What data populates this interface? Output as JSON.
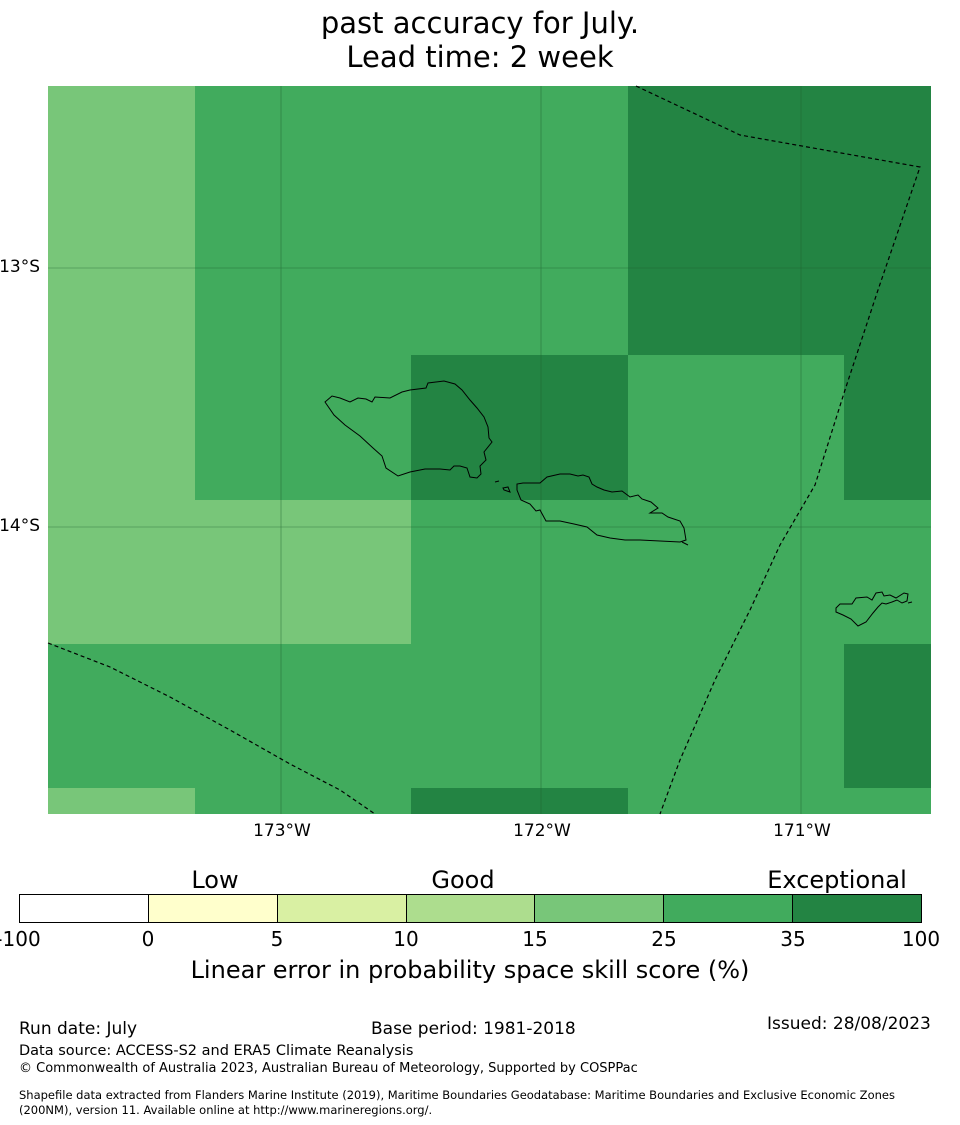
{
  "title": {
    "line1": "past accuracy for July.",
    "line2": "Lead time: 2 week"
  },
  "map": {
    "lat_labels": [
      "13°S",
      "14°S"
    ],
    "lon_labels": [
      "173°W",
      "172°W",
      "171°W"
    ],
    "colors": {
      "light": "#78c679",
      "medium": "#41ab5d",
      "dark": "#238443"
    }
  },
  "legend": {
    "categories": [
      "Low",
      "Good",
      "Exceptional"
    ],
    "ticks": [
      "-100",
      "0",
      "5",
      "10",
      "15",
      "25",
      "35",
      "100"
    ],
    "colors": [
      "#ffffff",
      "#ffffcc",
      "#d9f0a3",
      "#addd8e",
      "#78c679",
      "#41ab5d",
      "#238443"
    ],
    "title": "Linear error in probability space skill score (%)"
  },
  "footer": {
    "run_date": "Run date: July",
    "base_period": "Base period: 1981-2018",
    "issued": "Issued: 28/08/2023",
    "data_source": "Data source: ACCESS-S2 and ERA5 Climate Reanalysis",
    "copyright": "© Commonwealth of Australia 2023, Australian Bureau of Meteorology, Supported by COSPPac",
    "shapefile_line1": "Shapefile data extracted from Flanders Marine Institute (2019), Maritime Boundaries Geodatabase: Maritime Boundaries and Exclusive Economic Zones",
    "shapefile_line2": "(200NM), version 11. Available online at http://www.marineregions.org/."
  }
}
